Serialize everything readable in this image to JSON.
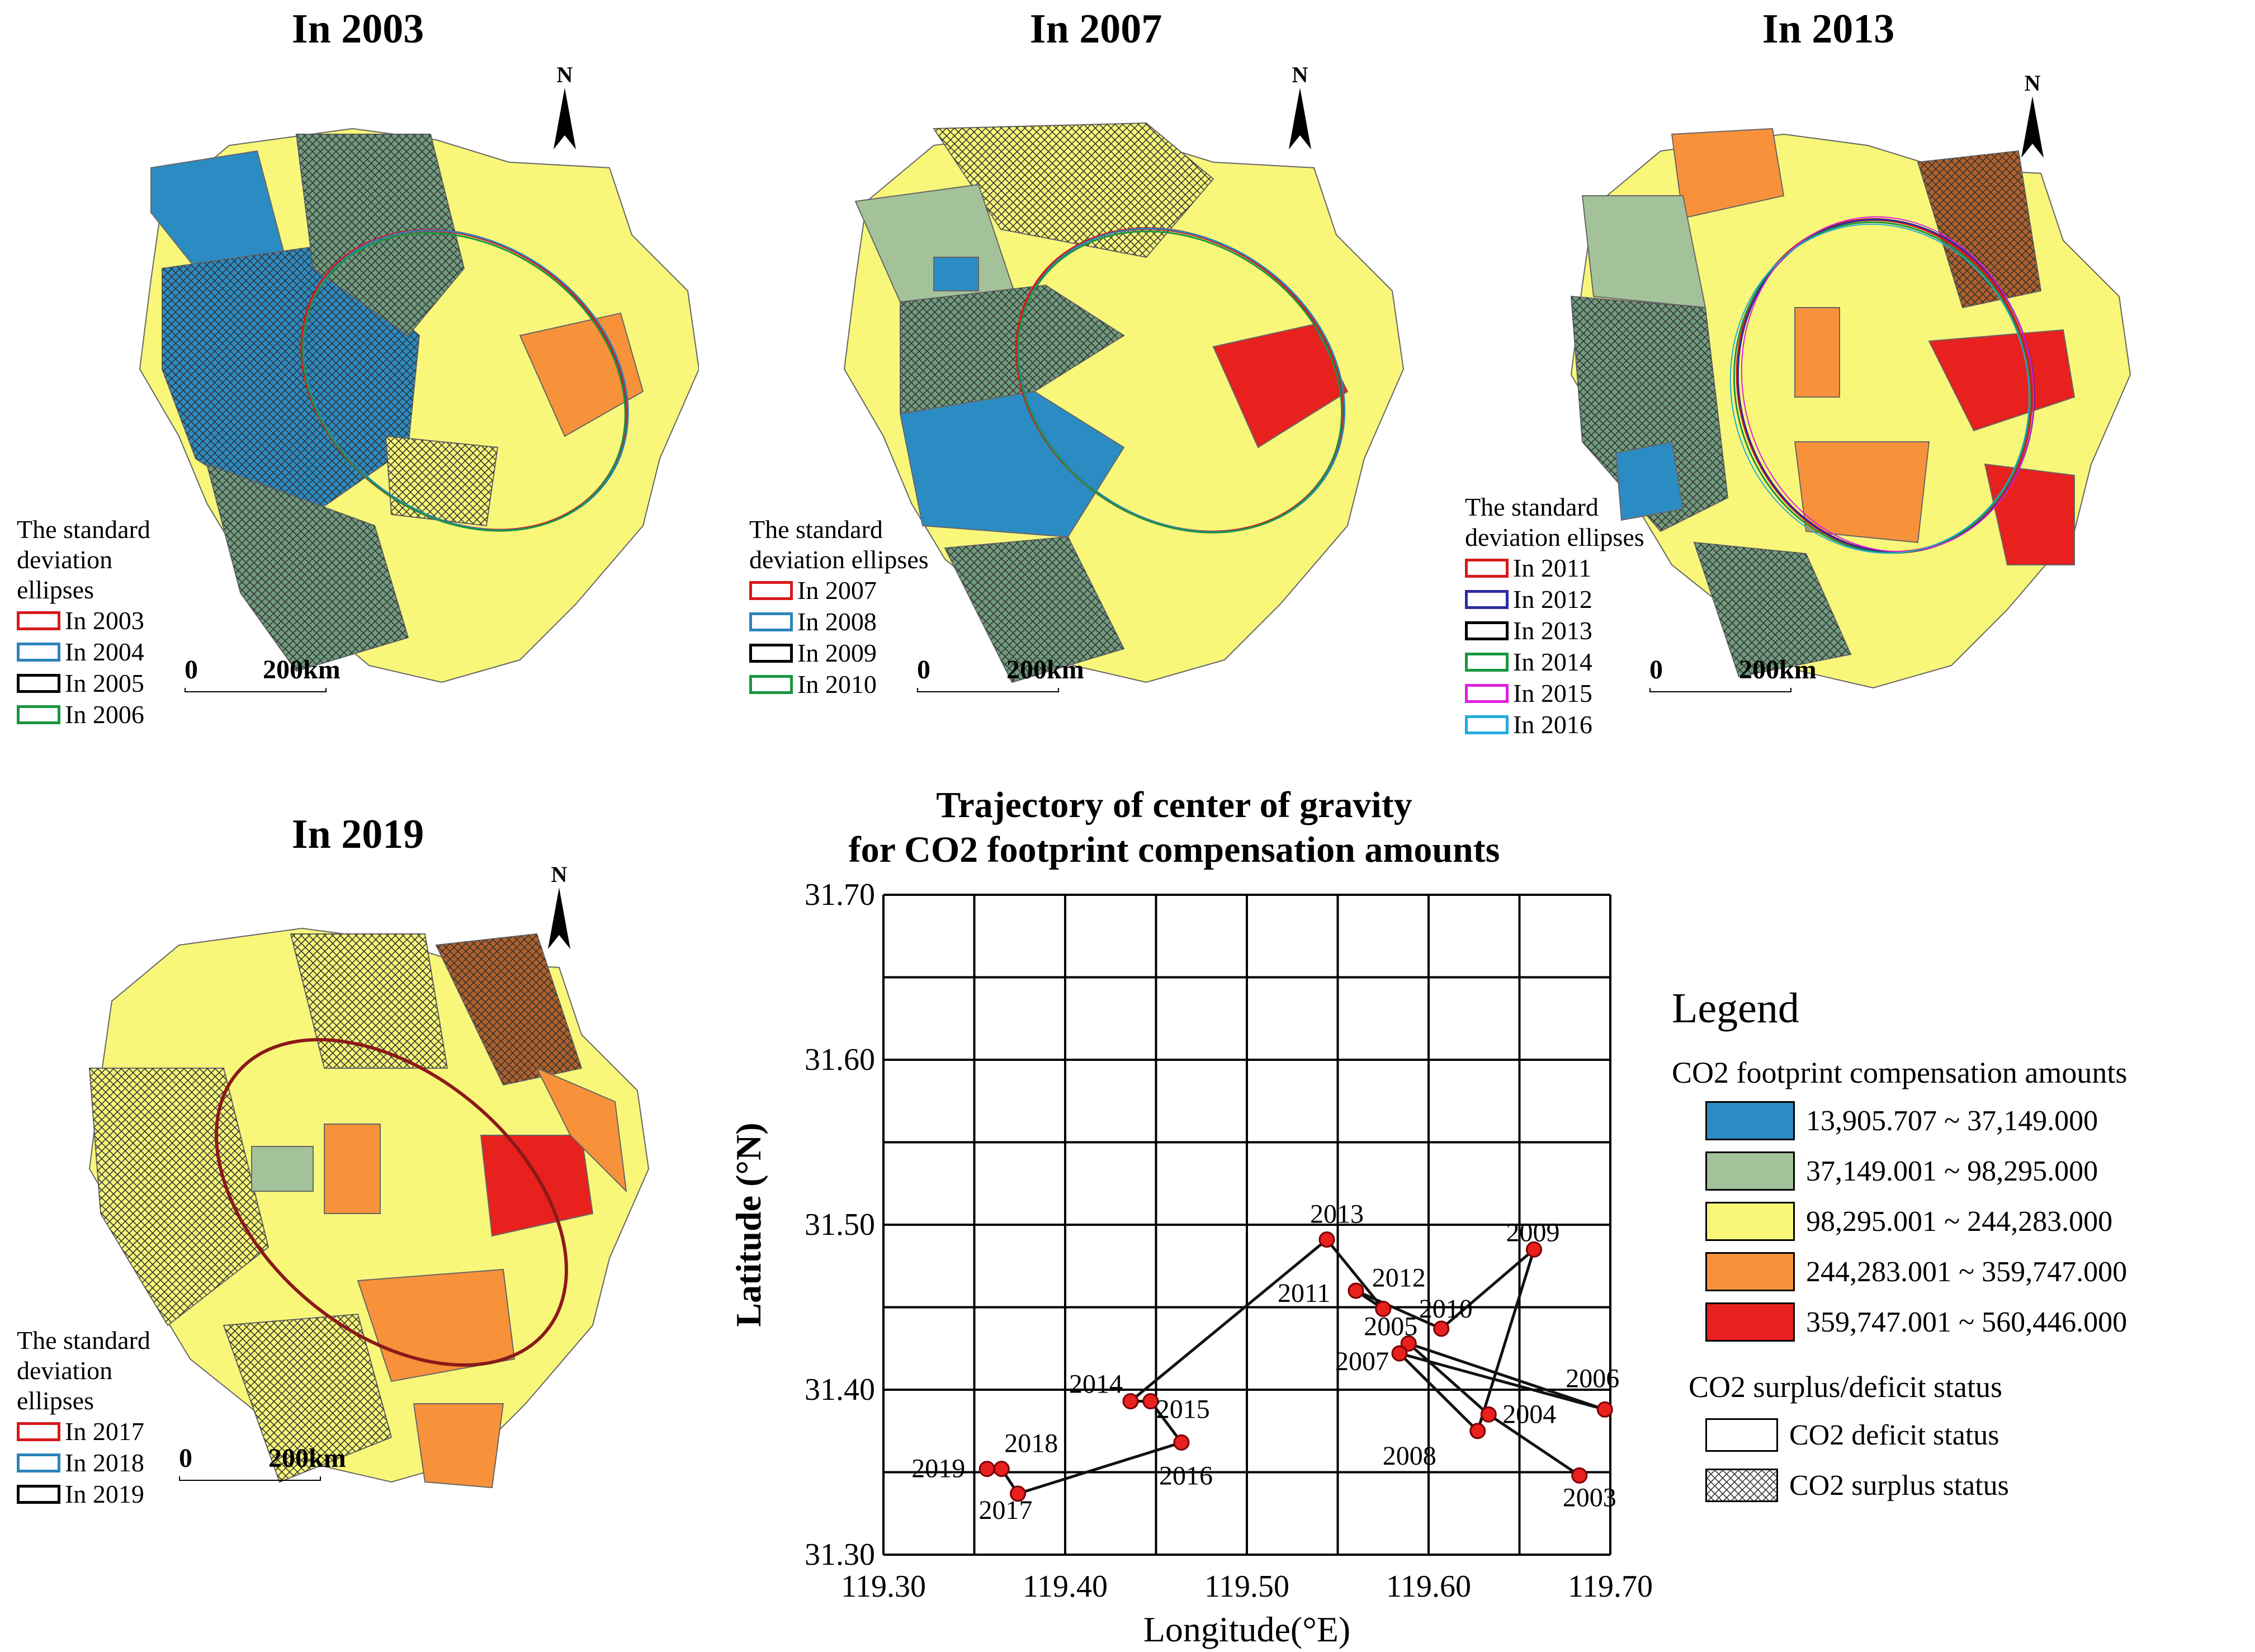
{
  "maps": [
    {
      "title": "In 2003",
      "ellipse_legend_title": "The standard deviation ellipses",
      "ellipses": [
        {
          "label": "In 2003",
          "color": "#d7191c"
        },
        {
          "label": "In 2004",
          "color": "#2b83ba"
        },
        {
          "label": "In 2005",
          "color": "#000000"
        },
        {
          "label": "In 2006",
          "color": "#1a9641"
        }
      ],
      "scale": {
        "zero": "0",
        "dist": "200km"
      },
      "north": "N"
    },
    {
      "title": "In 2007",
      "ellipse_legend_title": "The standard deviation ellipses",
      "ellipses": [
        {
          "label": "In 2007",
          "color": "#d7191c"
        },
        {
          "label": "In 2008",
          "color": "#2b83ba"
        },
        {
          "label": "In 2009",
          "color": "#000000"
        },
        {
          "label": "In 2010",
          "color": "#1a9641"
        }
      ],
      "scale": {
        "zero": "0",
        "dist": "200km"
      },
      "north": "N"
    },
    {
      "title": "In 2013",
      "ellipse_legend_title": "The standard deviation ellipses",
      "ellipses": [
        {
          "label": "In 2011",
          "color": "#d7191c"
        },
        {
          "label": "In 2012",
          "color": "#2c2ca0"
        },
        {
          "label": "In 2013",
          "color": "#000000"
        },
        {
          "label": "In 2014",
          "color": "#1a9641"
        },
        {
          "label": "In 2015",
          "color": "#e020e0"
        },
        {
          "label": "In 2016",
          "color": "#22aadd"
        }
      ],
      "scale": {
        "zero": "0",
        "dist": "200km"
      },
      "north": "N"
    },
    {
      "title": "In 2019",
      "ellipse_legend_title": "The standard deviation ellipses",
      "ellipses": [
        {
          "label": "In 2017",
          "color": "#d7191c"
        },
        {
          "label": "In 2018",
          "color": "#2b83ba"
        },
        {
          "label": "In 2019",
          "color": "#000000"
        }
      ],
      "scale": {
        "zero": "0",
        "dist": "200km"
      },
      "north": "N"
    }
  ],
  "chart_data": {
    "type": "line",
    "title_line1": "Trajectory of center of gravity",
    "title_line2": "for CO2 footprint compensation amounts",
    "xlabel": "Longitude(°E)",
    "ylabel": "Latitude (°N)",
    "xlim": [
      119.3,
      119.7
    ],
    "ylim": [
      31.3,
      31.7
    ],
    "xticks": [
      "119.30",
      "119.40",
      "119.50",
      "119.60",
      "119.70"
    ],
    "yticks": [
      "31.30",
      "31.40",
      "31.50",
      "31.60",
      "31.70"
    ],
    "points": [
      {
        "year": "2003",
        "lon": 119.683,
        "lat": 31.348
      },
      {
        "year": "2004",
        "lon": 119.633,
        "lat": 31.385
      },
      {
        "year": "2005",
        "lon": 119.589,
        "lat": 31.428
      },
      {
        "year": "2006",
        "lon": 119.697,
        "lat": 31.388
      },
      {
        "year": "2007",
        "lon": 119.584,
        "lat": 31.422
      },
      {
        "year": "2008",
        "lon": 119.627,
        "lat": 31.375
      },
      {
        "year": "2009",
        "lon": 119.658,
        "lat": 31.485
      },
      {
        "year": "2010",
        "lon": 119.607,
        "lat": 31.437
      },
      {
        "year": "2011",
        "lon": 119.56,
        "lat": 31.46
      },
      {
        "year": "2012",
        "lon": 119.575,
        "lat": 31.449
      },
      {
        "year": "2013",
        "lon": 119.544,
        "lat": 31.491
      },
      {
        "year": "2014",
        "lon": 119.436,
        "lat": 31.393
      },
      {
        "year": "2015",
        "lon": 119.447,
        "lat": 31.393
      },
      {
        "year": "2016",
        "lon": 119.464,
        "lat": 31.368
      },
      {
        "year": "2017",
        "lon": 119.374,
        "lat": 31.337
      },
      {
        "year": "2018",
        "lon": 119.365,
        "lat": 31.352
      },
      {
        "year": "2019",
        "lon": 119.357,
        "lat": 31.352
      }
    ]
  },
  "legend": {
    "title": "Legend",
    "amounts_title": "CO2 footprint compensation amounts",
    "amounts": [
      {
        "label": "13,905.707 ~  37,149.000",
        "color": "#2b8cc4"
      },
      {
        "label": "37,149.001 ~  98,295.000",
        "color": "#a3c29a"
      },
      {
        "label": "98,295.001 ~ 244,283.000",
        "color": "#f8f77a"
      },
      {
        "label": "244,283.001 ~ 359,747.000",
        "color": "#f7923a"
      },
      {
        "label": "359,747.001 ~ 560,446.000",
        "color": "#e8201e"
      }
    ],
    "status_title": "CO2 surplus/deficit status",
    "status": [
      {
        "label": "CO2 deficit status"
      },
      {
        "label": "CO2 surplus status"
      }
    ]
  }
}
